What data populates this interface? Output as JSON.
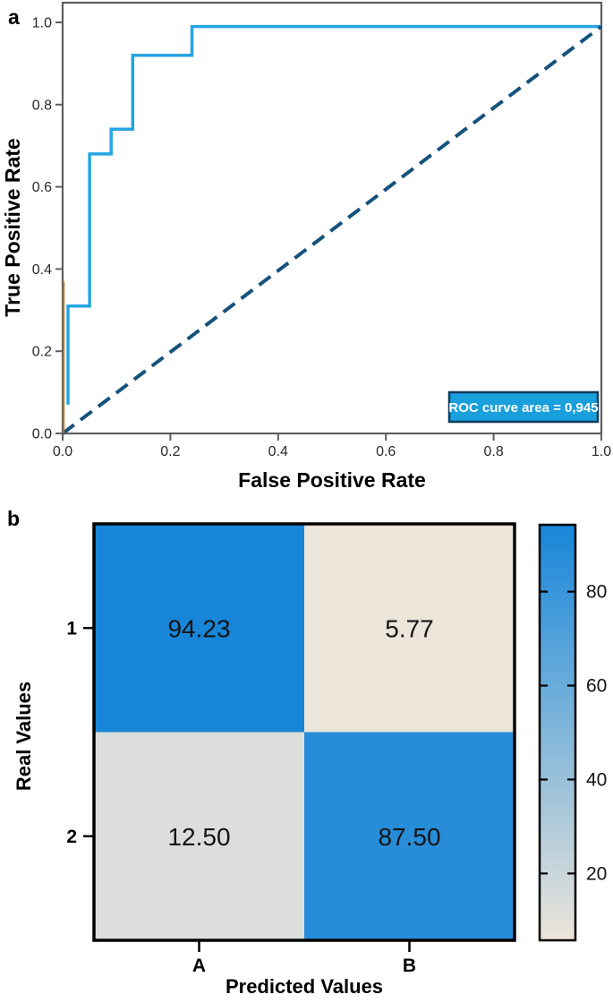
{
  "figure": {
    "panel_a_label": "a",
    "panel_b_label": "b"
  },
  "chart_data": [
    {
      "type": "line",
      "panel": "a",
      "xlabel": "False Positive Rate",
      "ylabel": "True Positive Rate",
      "xlim": [
        0,
        1
      ],
      "ylim": [
        0,
        1.05
      ],
      "grid": false,
      "legend_position": "lower right",
      "legend": "ROC curve area = 0,945",
      "xtick_labels": [
        "0.0",
        "0.2",
        "0.4",
        "0.6",
        "0.8",
        "1.0"
      ],
      "xtick_values": [
        0.0,
        0.2,
        0.4,
        0.6,
        0.8,
        1.0
      ],
      "ytick_labels": [
        "0.0",
        "0.2",
        "0.4",
        "0.6",
        "0.8",
        "1.0"
      ],
      "ytick_values": [
        0.0,
        0.2,
        0.4,
        0.6,
        0.8,
        1.0
      ],
      "series": [
        {
          "name": "ROC curve",
          "color": "#25a5e2",
          "style": "solid",
          "width": 3.5,
          "points": [
            [
              0.01,
              0.07
            ],
            [
              0.01,
              0.31
            ],
            [
              0.05,
              0.31
            ],
            [
              0.05,
              0.68
            ],
            [
              0.09,
              0.68
            ],
            [
              0.09,
              0.74
            ],
            [
              0.13,
              0.74
            ],
            [
              0.13,
              0.92
            ],
            [
              0.24,
              0.92
            ],
            [
              0.24,
              0.99
            ],
            [
              1.0,
              0.99
            ]
          ]
        },
        {
          "name": "chance diagonal",
          "color": "#15527c",
          "style": "dashed",
          "width": 4,
          "points": [
            [
              0.0,
              0.0
            ],
            [
              1.0,
              0.99
            ]
          ]
        },
        {
          "name": "origin artifact line",
          "color": "#b9772e",
          "style": "solid",
          "width": 2,
          "points": [
            [
              0.002,
              0.0
            ],
            [
              0.002,
              0.37
            ]
          ]
        }
      ],
      "colors": {
        "axis": "#5f5f5f",
        "tick": "#5f5f5f",
        "legend_fill": "#189fdc",
        "legend_border": "#0d3a5c",
        "legend_text": "#ffffff"
      }
    },
    {
      "type": "heatmap",
      "panel": "b",
      "xlabel": "Predicted Values",
      "ylabel": "Real Values",
      "x_categories": [
        "A",
        "B"
      ],
      "y_categories": [
        "1",
        "2"
      ],
      "values": [
        [
          94.23,
          5.77
        ],
        [
          12.5,
          87.5
        ]
      ],
      "cell_labels": [
        [
          "94.23",
          "5.77"
        ],
        [
          "12.50",
          "87.50"
        ]
      ],
      "colorbar": {
        "vmin": 5.77,
        "vmax": 94.23,
        "tick_values": [
          80,
          60,
          40,
          20
        ],
        "tick_labels": [
          "80",
          "60",
          "40",
          "20"
        ],
        "color_high": "#1786d9",
        "color_low": "#ebe5da"
      },
      "colors": {
        "border": "#000000",
        "tick": "#000000"
      }
    }
  ]
}
